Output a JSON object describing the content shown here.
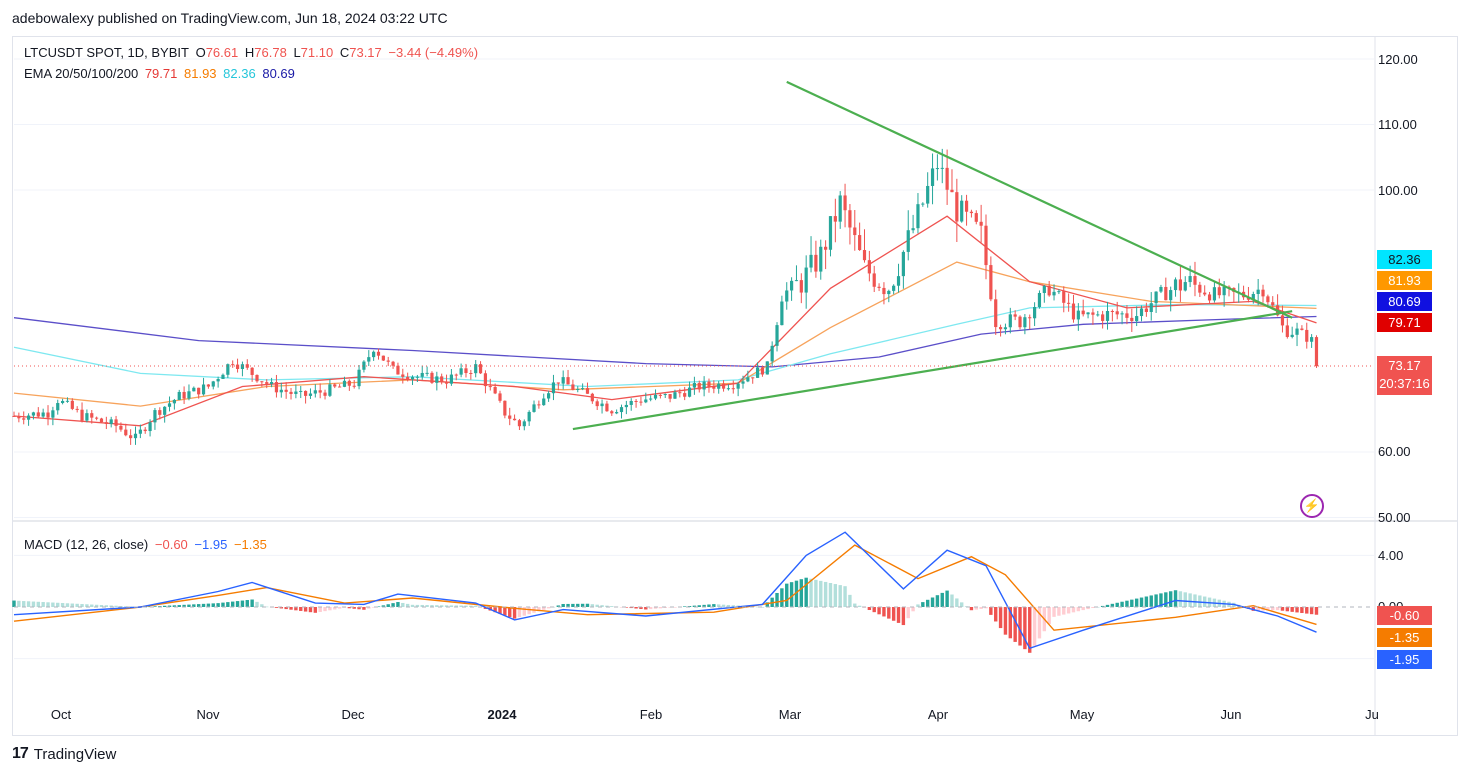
{
  "header": {
    "published": "adebowalexy published on TradingView.com, Jun 18, 2024 03:22 UTC"
  },
  "legend": {
    "symbol": "LTCUSDT SPOT, 1D, BYBIT",
    "o_label": "O",
    "o": "76.61",
    "h_label": "H",
    "h": "76.78",
    "l_label": "L",
    "l": "71.10",
    "c_label": "C",
    "c": "73.17",
    "change": "−3.44 (−4.49%)",
    "ema_label": "EMA 20/50/100/200",
    "ema20": "79.71",
    "ema50": "81.93",
    "ema100": "82.36",
    "ema200": "80.69"
  },
  "macd_legend": {
    "label": "MACD (12, 26, close)",
    "hist": "−0.60",
    "macd": "−1.95",
    "signal": "−1.35"
  },
  "price_badges": [
    {
      "text": "82.36",
      "color": "#00e5ff",
      "fg": "#131722"
    },
    {
      "text": "81.93",
      "color": "#ff9800",
      "fg": "#ffffff"
    },
    {
      "text": "80.69",
      "color": "#1010e0",
      "fg": "#ffffff"
    },
    {
      "text": "79.71",
      "color": "#e00000",
      "fg": "#ffffff"
    }
  ],
  "last_price": {
    "price": "73.17",
    "countdown": "20:37:16",
    "color": "#f05350"
  },
  "macd_badges": [
    {
      "text": "-0.60",
      "color": "#f05350"
    },
    {
      "text": "-1.35",
      "color": "#f57c00"
    },
    {
      "text": "-1.95",
      "color": "#2962ff"
    }
  ],
  "footer": {
    "brand": "TradingView",
    "mark": "17"
  },
  "colors": {
    "up": "#26a69a",
    "down": "#ef5350",
    "ema20": "#ef5350",
    "ema50": "#f7a35c",
    "ema100": "#7ee8f0",
    "ema200": "#5b4fc9",
    "trendline": "#4caf50",
    "macd": "#2962ff",
    "signal": "#f57c00"
  },
  "chart_data": {
    "type": "candlestick",
    "symbol": "LTCUSDT",
    "y_ticks": [
      120,
      110,
      100,
      60,
      50
    ],
    "y_tick_labels": [
      "120.00",
      "110.00",
      "100.00",
      "60.00",
      "50.00"
    ],
    "macd_ticks": [
      4,
      0
    ],
    "macd_tick_labels": [
      "4.00",
      "0.00"
    ],
    "x_tick_labels": [
      "Oct",
      "Nov",
      "Dec",
      "2024",
      "Feb",
      "Mar",
      "Apr",
      "May",
      "Jun",
      "Ju"
    ],
    "last_close": 73.17,
    "trendlines": [
      {
        "name": "descending",
        "from": {
          "date": "2024-03-01",
          "price": 116.5
        },
        "to": {
          "date": "2024-06-13",
          "price": 80.5
        }
      },
      {
        "name": "ascending",
        "from": {
          "date": "2024-01-17",
          "price": 63.5
        },
        "to": {
          "date": "2024-06-13",
          "price": 81.5
        }
      }
    ],
    "close_points": [
      [
        "2023-09-24",
        65.5
      ],
      [
        "2023-10-01",
        66
      ],
      [
        "2023-10-03",
        68
      ],
      [
        "2023-10-08",
        65.5
      ],
      [
        "2023-10-15",
        64
      ],
      [
        "2023-10-19",
        62
      ],
      [
        "2023-10-23",
        66
      ],
      [
        "2023-10-28",
        68.5
      ],
      [
        "2023-11-03",
        70
      ],
      [
        "2023-11-08",
        74
      ],
      [
        "2023-11-12",
        72
      ],
      [
        "2023-11-16",
        70
      ],
      [
        "2023-11-22",
        68.5
      ],
      [
        "2023-11-28",
        69.5
      ],
      [
        "2023-12-03",
        70.5
      ],
      [
        "2023-12-07",
        76
      ],
      [
        "2023-12-11",
        72.5
      ],
      [
        "2023-12-16",
        71.5
      ],
      [
        "2023-12-22",
        71
      ],
      [
        "2023-12-28",
        73
      ],
      [
        "2024-01-03",
        66
      ],
      [
        "2024-01-06",
        64
      ],
      [
        "2024-01-11",
        69
      ],
      [
        "2024-01-14",
        71
      ],
      [
        "2024-01-19",
        69
      ],
      [
        "2024-01-25",
        66.5
      ],
      [
        "2024-01-31",
        68
      ],
      [
        "2024-02-06",
        68.5
      ],
      [
        "2024-02-12",
        70
      ],
      [
        "2024-02-19",
        70.5
      ],
      [
        "2024-02-26",
        73
      ],
      [
        "2024-02-29",
        84
      ],
      [
        "2024-03-04",
        86
      ],
      [
        "2024-03-08",
        90
      ],
      [
        "2024-03-12",
        98
      ],
      [
        "2024-03-17",
        88
      ],
      [
        "2024-03-22",
        85
      ],
      [
        "2024-03-28",
        96
      ],
      [
        "2024-04-01",
        104
      ],
      [
        "2024-04-05",
        97
      ],
      [
        "2024-04-10",
        93
      ],
      [
        "2024-04-13",
        80
      ],
      [
        "2024-04-18",
        80
      ],
      [
        "2024-04-24",
        85
      ],
      [
        "2024-04-30",
        80.5
      ],
      [
        "2024-05-06",
        81
      ],
      [
        "2024-05-12",
        81
      ],
      [
        "2024-05-17",
        84
      ],
      [
        "2024-05-22",
        86
      ],
      [
        "2024-05-28",
        84
      ],
      [
        "2024-06-03",
        84
      ],
      [
        "2024-06-07",
        85
      ],
      [
        "2024-06-11",
        79
      ],
      [
        "2024-06-15",
        78
      ],
      [
        "2024-06-17",
        77
      ],
      [
        "2024-06-18",
        73.17
      ]
    ],
    "ema200_points": [
      [
        "2023-09-24",
        80.5
      ],
      [
        "2023-11-01",
        77
      ],
      [
        "2023-12-15",
        75.5
      ],
      [
        "2024-02-01",
        73.5
      ],
      [
        "2024-02-27",
        73
      ],
      [
        "2024-03-20",
        74.5
      ],
      [
        "2024-04-10",
        78
      ],
      [
        "2024-05-01",
        79.5
      ],
      [
        "2024-06-01",
        80.3
      ],
      [
        "2024-06-18",
        80.69
      ]
    ],
    "ema100_points": [
      [
        "2023-09-24",
        76
      ],
      [
        "2023-10-20",
        72
      ],
      [
        "2023-11-15",
        71
      ],
      [
        "2023-12-15",
        71.5
      ],
      [
        "2024-01-20",
        70
      ],
      [
        "2024-02-20",
        71
      ],
      [
        "2024-03-10",
        75
      ],
      [
        "2024-04-05",
        79.5
      ],
      [
        "2024-04-20",
        82
      ],
      [
        "2024-05-20",
        82.5
      ],
      [
        "2024-06-18",
        82.36
      ]
    ],
    "ema50_points": [
      [
        "2023-09-24",
        69
      ],
      [
        "2023-10-20",
        67
      ],
      [
        "2023-11-15",
        70
      ],
      [
        "2023-12-15",
        71
      ],
      [
        "2024-01-15",
        69.5
      ],
      [
        "2024-02-20",
        70.5
      ],
      [
        "2024-03-10",
        79
      ],
      [
        "2024-04-05",
        89
      ],
      [
        "2024-04-20",
        86
      ],
      [
        "2024-05-15",
        83
      ],
      [
        "2024-06-18",
        81.93
      ]
    ],
    "ema20_points": [
      [
        "2023-09-24",
        65.5
      ],
      [
        "2023-10-20",
        64
      ],
      [
        "2023-11-10",
        70
      ],
      [
        "2023-12-05",
        71.5
      ],
      [
        "2024-01-05",
        70
      ],
      [
        "2024-01-25",
        68
      ],
      [
        "2024-02-20",
        70.5
      ],
      [
        "2024-03-10",
        85
      ],
      [
        "2024-04-03",
        96
      ],
      [
        "2024-04-20",
        86
      ],
      [
        "2024-05-10",
        82
      ],
      [
        "2024-06-05",
        83
      ],
      [
        "2024-06-18",
        79.71
      ]
    ],
    "macd_points": [
      [
        "2023-09-24",
        -0.6
      ],
      [
        "2023-10-20",
        0
      ],
      [
        "2023-11-05",
        1.2
      ],
      [
        "2023-11-12",
        1.9
      ],
      [
        "2023-11-25",
        0.3
      ],
      [
        "2023-12-05",
        0.2
      ],
      [
        "2023-12-12",
        1.0
      ],
      [
        "2023-12-28",
        0.3
      ],
      [
        "2024-01-05",
        -1.0
      ],
      [
        "2024-01-15",
        -0.2
      ],
      [
        "2024-02-01",
        -0.7
      ],
      [
        "2024-02-25",
        0.2
      ],
      [
        "2024-03-05",
        4.0
      ],
      [
        "2024-03-13",
        5.8
      ],
      [
        "2024-03-25",
        1.4
      ],
      [
        "2024-04-03",
        4.4
      ],
      [
        "2024-04-11",
        3.2
      ],
      [
        "2024-04-20",
        -3.2
      ],
      [
        "2024-05-01",
        -1.8
      ],
      [
        "2024-05-20",
        0.5
      ],
      [
        "2024-06-01",
        0.2
      ],
      [
        "2024-06-10",
        -0.7
      ],
      [
        "2024-06-18",
        -1.95
      ]
    ],
    "signal_points": [
      [
        "2023-09-24",
        -1.1
      ],
      [
        "2023-10-20",
        0
      ],
      [
        "2023-11-05",
        0.9
      ],
      [
        "2023-11-15",
        1.5
      ],
      [
        "2023-12-01",
        0.3
      ],
      [
        "2023-12-15",
        0.7
      ],
      [
        "2024-01-05",
        -0.1
      ],
      [
        "2024-01-20",
        -0.6
      ],
      [
        "2024-02-15",
        -0.4
      ],
      [
        "2024-03-01",
        0.5
      ],
      [
        "2024-03-15",
        4.8
      ],
      [
        "2024-03-28",
        2.2
      ],
      [
        "2024-04-08",
        3.9
      ],
      [
        "2024-04-15",
        2.5
      ],
      [
        "2024-04-25",
        -1.8
      ],
      [
        "2024-05-20",
        -0.8
      ],
      [
        "2024-06-05",
        0.1
      ],
      [
        "2024-06-18",
        -1.35
      ]
    ]
  }
}
